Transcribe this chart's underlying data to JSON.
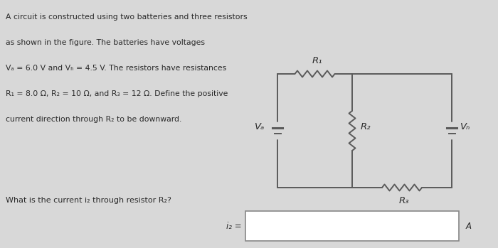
{
  "bg_color": "#d8d8d8",
  "text_color": "#2a2a2a",
  "line_color": "#5a5a5a",
  "title_lines": [
    "A circuit is constructed using two batteries and three resistors",
    "as shown in the figure. The batteries have voltages",
    "Vₐ = 6.0 V and Vₕ = 4.5 V. The resistors have resistances",
    "R₁ = 8.0 Ω, R₂ = 10 Ω, and R₃ = 12 Ω. Define the positive",
    "current direction through R₂ to be downward."
  ],
  "question_text": "What is the current i₂ through resistor R₂?",
  "answer_label": "i₂ =",
  "answer_unit": "A",
  "circuit": {
    "Va_label": "Vₐ",
    "Vb_label": "Vₕ",
    "R1_label": "R₁",
    "R2_label": "R₂",
    "R3_label": "R₃"
  }
}
